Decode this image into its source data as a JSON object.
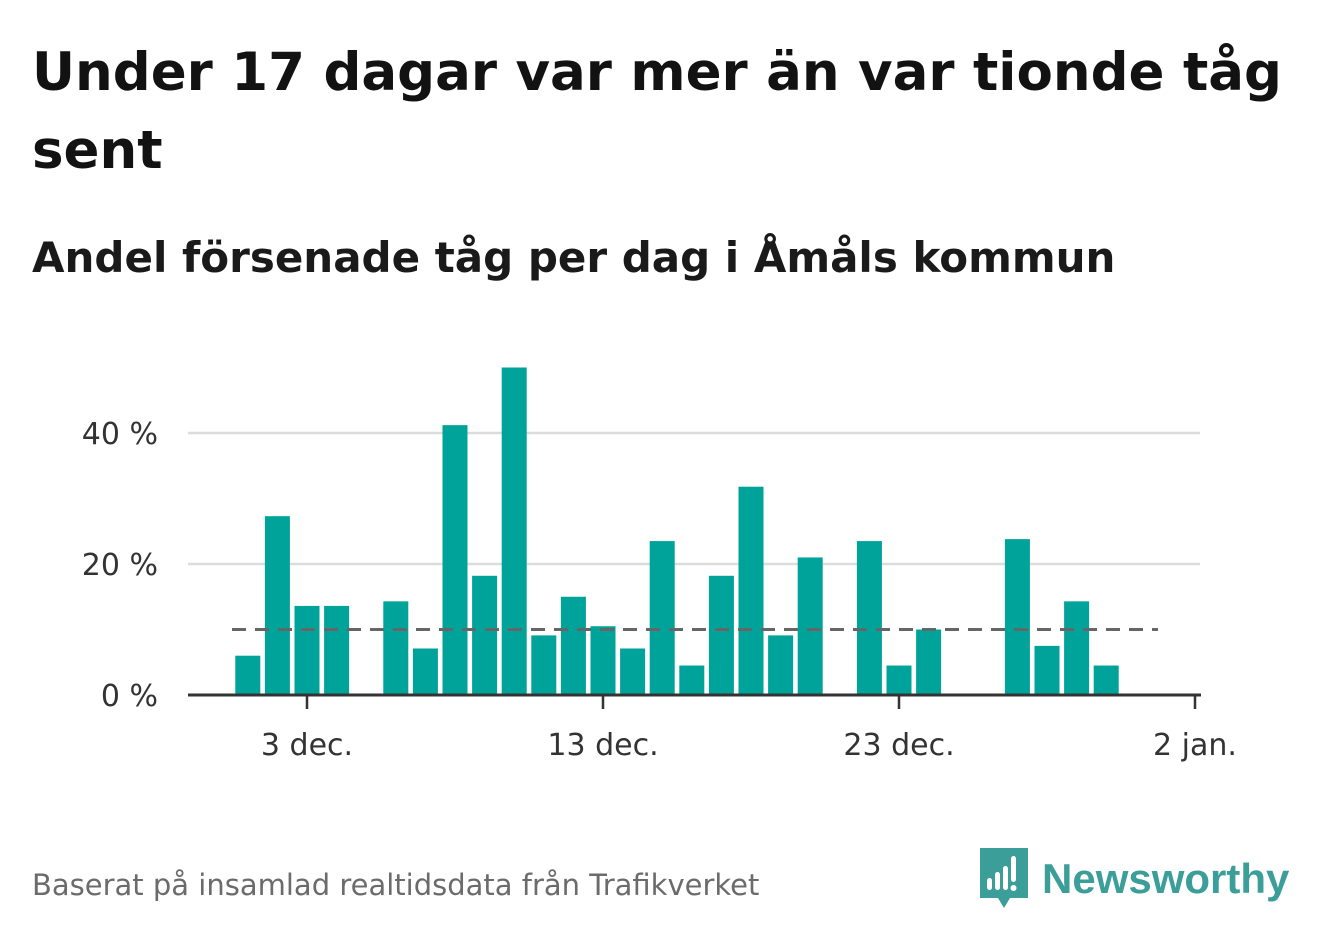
{
  "title": "Under 17 dagar var mer än var tionde tåg sent",
  "subtitle": "Andel försenade tåg per dag i Åmåls kommun",
  "footer": "Baserat på insamlad realtidsdata från Trafikverket",
  "brand": {
    "name": "Newsworthy",
    "icon": "newsworthy-logo-icon",
    "color": "#3b9e98"
  },
  "chart_data": {
    "type": "bar",
    "title": "Under 17 dagar var mer än var tionde tåg sent",
    "subtitle": "Andel försenade tåg per dag i Åmåls kommun",
    "x_axis": {
      "type": "date",
      "ticks": [
        {
          "date": "2022-12-03",
          "label": "3 dec."
        },
        {
          "date": "2022-12-13",
          "label": "13 dec."
        },
        {
          "date": "2022-12-23",
          "label": "23 dec."
        },
        {
          "date": "2023-01-02",
          "label": "2 jan."
        }
      ]
    },
    "y_axis": {
      "ticks": [
        0,
        20,
        40
      ],
      "tick_labels": [
        "0 %",
        "20 %",
        "40 %"
      ],
      "ylim": [
        0,
        50
      ],
      "unit": "%"
    },
    "reference_line": {
      "value": 10,
      "style": "dashed",
      "color": "#666666"
    },
    "grid": true,
    "bar_color": "#00a39a",
    "data": [
      {
        "date": "2022-12-01",
        "value": 6
      },
      {
        "date": "2022-12-02",
        "value": 27.3
      },
      {
        "date": "2022-12-03",
        "value": 13.6
      },
      {
        "date": "2022-12-04",
        "value": 13.6
      },
      {
        "date": "2022-12-05",
        "value": null
      },
      {
        "date": "2022-12-06",
        "value": 14.3
      },
      {
        "date": "2022-12-07",
        "value": 7.1
      },
      {
        "date": "2022-12-08",
        "value": 41.2
      },
      {
        "date": "2022-12-09",
        "value": 18.2
      },
      {
        "date": "2022-12-10",
        "value": 50
      },
      {
        "date": "2022-12-11",
        "value": 9.1
      },
      {
        "date": "2022-12-12",
        "value": 15
      },
      {
        "date": "2022-12-13",
        "value": 10.5
      },
      {
        "date": "2022-12-14",
        "value": 7.1
      },
      {
        "date": "2022-12-15",
        "value": 23.5
      },
      {
        "date": "2022-12-16",
        "value": 4.5
      },
      {
        "date": "2022-12-17",
        "value": 18.2
      },
      {
        "date": "2022-12-18",
        "value": 31.8
      },
      {
        "date": "2022-12-19",
        "value": 9.1
      },
      {
        "date": "2022-12-20",
        "value": 21
      },
      {
        "date": "2022-12-21",
        "value": null
      },
      {
        "date": "2022-12-22",
        "value": 23.5
      },
      {
        "date": "2022-12-23",
        "value": 4.5
      },
      {
        "date": "2022-12-24",
        "value": 10
      },
      {
        "date": "2022-12-25",
        "value": null
      },
      {
        "date": "2022-12-26",
        "value": null
      },
      {
        "date": "2022-12-27",
        "value": 23.8
      },
      {
        "date": "2022-12-28",
        "value": 7.5
      },
      {
        "date": "2022-12-29",
        "value": 14.3
      },
      {
        "date": "2022-12-30",
        "value": 4.5
      },
      {
        "date": "2022-12-31",
        "value": null
      }
    ]
  }
}
